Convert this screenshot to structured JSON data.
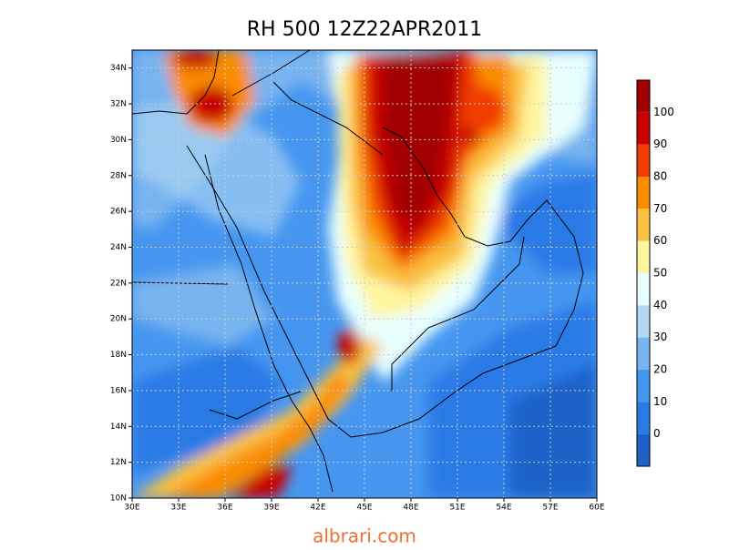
{
  "map": {
    "title": "RH 500  12Z22APR2011",
    "lon_labels": [
      "30E",
      "33E",
      "36E",
      "39E",
      "42E",
      "45E",
      "48E",
      "51E",
      "54E",
      "57E",
      "60E"
    ],
    "lat_labels": [
      "10N",
      "12N",
      "14N",
      "16N",
      "18N",
      "20N",
      "22N",
      "24N",
      "26N",
      "28N",
      "30N",
      "32N",
      "34N"
    ],
    "colorbar": {
      "labels": [
        100,
        90,
        80,
        70,
        60,
        50,
        40,
        30,
        20,
        10,
        0
      ],
      "colors": [
        "#a00000",
        "#c80000",
        "#f03c00",
        "#fa8c00",
        "#fac040",
        "#fff5a0",
        "#e8ffff",
        "#b0d8f4",
        "#78b4f0",
        "#4696f0",
        "#2a7ae6",
        "#1e62c8"
      ]
    },
    "watermark": "albrari.com"
  }
}
